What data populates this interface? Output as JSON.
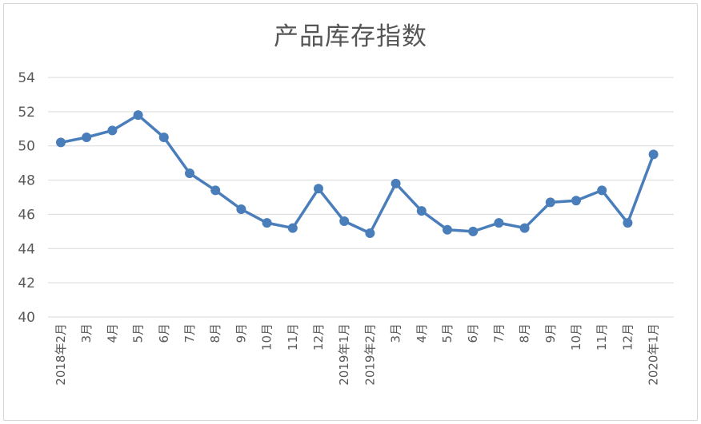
{
  "chart_data": {
    "type": "line",
    "title": "产品库存指数",
    "xlabel": "",
    "ylabel": "",
    "ylim": [
      40,
      54
    ],
    "yticks": [
      40,
      42,
      44,
      46,
      48,
      50,
      52,
      54
    ],
    "grid": true,
    "legend": "none",
    "categories": [
      "2018年2月",
      "3月",
      "4月",
      "5月",
      "6月",
      "7月",
      "8月",
      "9月",
      "10月",
      "11月",
      "12月",
      "2019年1月",
      "2019年2月",
      "3月",
      "4月",
      "5月",
      "6月",
      "7月",
      "8月",
      "9月",
      "10月",
      "11月",
      "12月",
      "2020年1月"
    ],
    "series": [
      {
        "values": [
          50.2,
          50.5,
          50.9,
          51.8,
          50.5,
          48.4,
          47.4,
          46.3,
          45.5,
          45.2,
          47.5,
          45.6,
          44.9,
          47.8,
          46.2,
          45.1,
          45.0,
          45.5,
          45.2,
          46.7,
          46.8,
          47.4,
          45.5,
          49.5
        ]
      }
    ],
    "colors": {
      "line": "#4a7ebb",
      "marker": "#4a7ebb",
      "grid": "#d9d9d9",
      "text": "#595959"
    }
  }
}
